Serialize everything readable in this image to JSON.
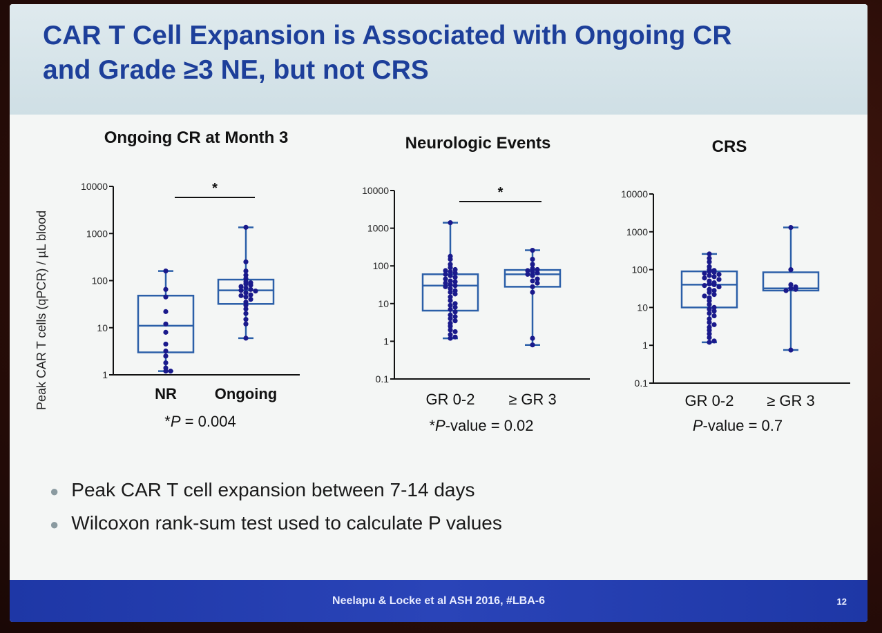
{
  "slide": {
    "title_line_1": "CAR T Cell Expansion is Associated with Ongoing CR",
    "title_line_2": "and Grade ≥3 NE, but not CRS",
    "y_axis_label": "Peak CAR T cells (qPCR) / µL blood",
    "bullets": [
      "Peak CAR T cell expansion between 7-14 days",
      "Wilcoxon rank-sum test used to calculate P values"
    ],
    "footer_citation": "Neelapu & Locke et al ASH 2016, #LBA-6",
    "page_number": "12"
  },
  "colors": {
    "title": "#1d3f9a",
    "box": "#2b5fa8",
    "dots": "#1a1a8c",
    "footer": "#1e37a6"
  },
  "chart_data": [
    {
      "type": "box",
      "title": "Ongoing CR at Month 3",
      "ylabel": "Peak CAR T cells (qPCR) / µL blood",
      "yscale": "log",
      "ylim": [
        1,
        10000
      ],
      "yticks": [
        "1",
        "10",
        "100",
        "1000",
        "10000"
      ],
      "categories": [
        "NR",
        "Ongoing"
      ],
      "significance_marker": "*",
      "pvalue_prefix": "*",
      "pvalue_italic": "P",
      "pvalue_rest": " = 0.004",
      "boxes": [
        {
          "category": "NR",
          "min": 1.2,
          "q1": 3,
          "median": 11,
          "q3": 48,
          "max": 160,
          "points": [
            160,
            65,
            45,
            22,
            12,
            8,
            4.5,
            3.2,
            2.5,
            1.8,
            1.4,
            1.2,
            1.2
          ]
        },
        {
          "category": "Ongoing",
          "min": 6,
          "q1": 32,
          "median": 62,
          "q3": 105,
          "max": 1350,
          "points": [
            1350,
            250,
            160,
            130,
            110,
            95,
            90,
            85,
            80,
            75,
            70,
            65,
            62,
            60,
            55,
            50,
            48,
            45,
            40,
            35,
            30,
            25,
            20,
            15,
            12,
            6
          ]
        }
      ]
    },
    {
      "type": "box",
      "title": "Neurologic Events",
      "yscale": "log",
      "ylim": [
        0.1,
        10000
      ],
      "yticks": [
        "0.1",
        "1",
        "10",
        "100",
        "1000",
        "10000"
      ],
      "categories": [
        "GR 0-2",
        "≥ GR 3"
      ],
      "significance_marker": "*",
      "pvalue_prefix": "*",
      "pvalue_italic": "P",
      "pvalue_rest": "-value = 0.02",
      "boxes": [
        {
          "category": "GR 0-2",
          "min": 1.2,
          "q1": 6.5,
          "median": 30,
          "q3": 60,
          "max": 1400,
          "points": [
            1400,
            180,
            150,
            110,
            90,
            80,
            75,
            70,
            65,
            60,
            55,
            50,
            45,
            40,
            38,
            35,
            32,
            30,
            28,
            25,
            22,
            20,
            18,
            15,
            12,
            10,
            9,
            8,
            7,
            6,
            5,
            4.5,
            4,
            3.5,
            3,
            2.5,
            2,
            1.8,
            1.5,
            1.3,
            1.2
          ]
        },
        {
          "category": "≥ GR 3",
          "min": 0.8,
          "q1": 28,
          "median": 60,
          "q3": 78,
          "max": 260,
          "points": [
            260,
            150,
            110,
            85,
            80,
            75,
            70,
            65,
            60,
            55,
            45,
            40,
            35,
            28,
            20,
            1.2,
            0.8
          ]
        }
      ]
    },
    {
      "type": "box",
      "title": "CRS",
      "yscale": "log",
      "ylim": [
        0.1,
        10000
      ],
      "yticks": [
        "0.1",
        "1",
        "10",
        "100",
        "1000",
        "10000"
      ],
      "categories": [
        "GR 0-2",
        "≥ GR 3"
      ],
      "significance_marker": "",
      "pvalue_prefix": "",
      "pvalue_italic": "P",
      "pvalue_rest": "-value = 0.7",
      "boxes": [
        {
          "category": "GR 0-2",
          "min": 1.2,
          "q1": 10,
          "median": 40,
          "q3": 90,
          "max": 260,
          "points": [
            260,
            200,
            160,
            120,
            100,
            95,
            90,
            85,
            80,
            75,
            70,
            65,
            60,
            55,
            50,
            45,
            42,
            40,
            38,
            35,
            30,
            28,
            25,
            22,
            20,
            18,
            15,
            12,
            10,
            9,
            8,
            7,
            6,
            5,
            4,
            3.5,
            3,
            2.5,
            2,
            1.6,
            1.3,
            1.2
          ]
        },
        {
          "category": "≥ GR 3",
          "min": 0.75,
          "q1": 28,
          "median": 32,
          "q3": 85,
          "max": 1300,
          "points": [
            1300,
            100,
            40,
            35,
            32,
            30,
            28,
            0.75
          ]
        }
      ]
    }
  ]
}
